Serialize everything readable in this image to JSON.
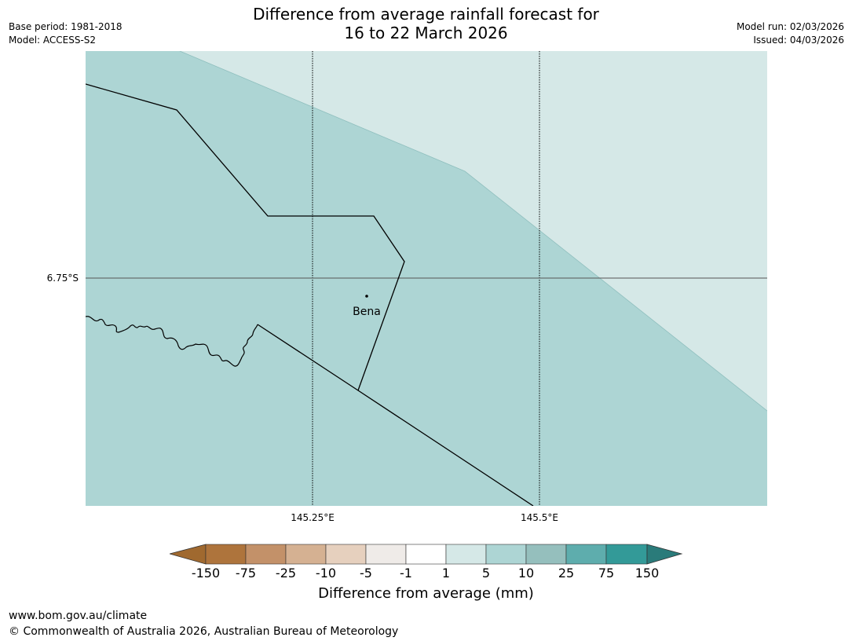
{
  "header": {
    "title_line1": "Difference from average rainfall forecast for",
    "title_line2": "16 to 22 March 2026",
    "base_period": "Base period: 1981-2018",
    "model": "Model: ACCESS-S2",
    "model_run": "Model run: 02/03/2026",
    "issued": "Issued: 04/03/2026"
  },
  "map": {
    "latitude_label": "6.75°S",
    "longitude_labels": [
      "145.25°E",
      "145.5°E"
    ],
    "place_label": "Bena",
    "regions": [
      {
        "category": "5 to 10",
        "color": "#add5d4"
      },
      {
        "category": "1 to 5",
        "color": "#d5e8e7"
      }
    ]
  },
  "legend": {
    "title": "Difference from average (mm)",
    "ticks": [
      "-150",
      "-75",
      "-25",
      "-10",
      "-5",
      "-1",
      "1",
      "5",
      "10",
      "25",
      "75",
      "150"
    ],
    "colors": [
      "#a0692f",
      "#ae743c",
      "#c39169",
      "#d5b192",
      "#e6d0be",
      "#efebe8",
      "#ffffff",
      "#d5e8e7",
      "#add5d4",
      "#95bfbd",
      "#5eadad",
      "#339a98",
      "#2a7b7a"
    ]
  },
  "footer": {
    "url": "www.bom.gov.au/climate",
    "copyright": "© Commonwealth of Australia 2026, Australian Bureau of Meteorology"
  }
}
